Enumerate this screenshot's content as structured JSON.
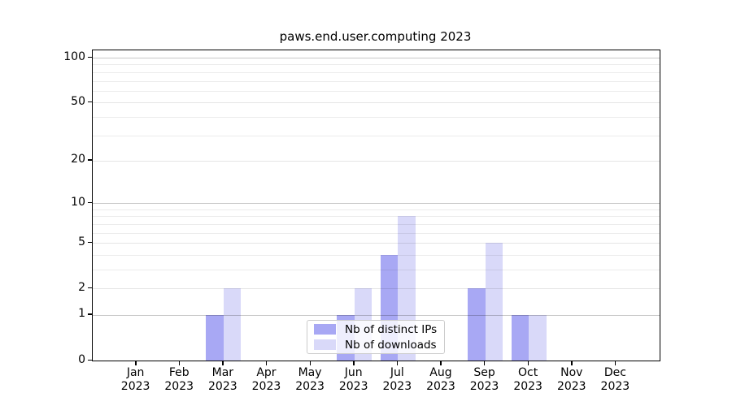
{
  "title": "paws.end.user.computing 2023",
  "legend": {
    "items": [
      {
        "label": "Nb of distinct IPs",
        "key": "ips"
      },
      {
        "label": "Nb of downloads",
        "key": "downloads"
      }
    ]
  },
  "colors": {
    "ips": "#a8a8f4",
    "downloads": "#d9d9f9",
    "axis": "#000000",
    "legend_border": "#cccccc",
    "legend_bg": "rgba(255,255,255,0.8)"
  },
  "chart_data": {
    "type": "bar",
    "title": "paws.end.user.computing 2023",
    "categories": [
      "Jan 2023",
      "Feb 2023",
      "Mar 2023",
      "Apr 2023",
      "May 2023",
      "Jun 2023",
      "Jul 2023",
      "Aug 2023",
      "Sep 2023",
      "Oct 2023",
      "Nov 2023",
      "Dec 2023"
    ],
    "series": [
      {
        "name": "Nb of distinct IPs",
        "color": "#a8a8f4",
        "values": [
          0,
          0,
          1,
          0,
          0,
          1,
          4,
          0,
          2,
          1,
          0,
          0
        ]
      },
      {
        "name": "Nb of downloads",
        "color": "#d9d9f9",
        "values": [
          0,
          0,
          2,
          0,
          0,
          2,
          8,
          0,
          5,
          1,
          0,
          0
        ]
      }
    ],
    "y_scale": "log1p",
    "y_ticks": [
      0,
      1,
      2,
      5,
      10,
      20,
      50,
      100
    ],
    "y_major_gridlines": [
      1,
      10,
      100
    ],
    "y_light_gridlines": [
      2,
      5,
      20,
      50
    ],
    "y_minor_gridlines": [
      3,
      4,
      6,
      7,
      8,
      9,
      30,
      40,
      60,
      70,
      80,
      90
    ],
    "ylim": [
      0,
      112
    ],
    "xlabel": "",
    "ylabel": "",
    "grid": true,
    "grid_above_bars": true,
    "legend_position": "lower center"
  }
}
